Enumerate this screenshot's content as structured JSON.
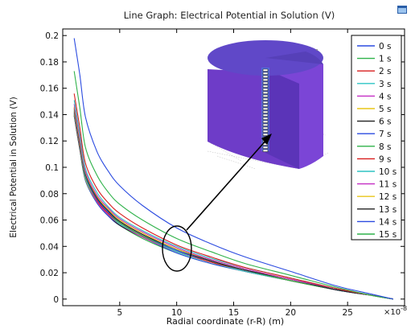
{
  "chart_data": {
    "type": "line",
    "title": "Line Graph: Electrical Potential in Solution (V)",
    "xlabel": "Radial coordinate (r-R) (m)",
    "ylabel": "Electrical Potential in Solution (V)",
    "x_exponent_label": "×10",
    "x_exponent_value": "-8",
    "xlim": [
      0,
      30
    ],
    "ylim": [
      -0.005,
      0.205
    ],
    "x_ticks": [
      "5",
      "10",
      "15",
      "20",
      "25"
    ],
    "y_ticks": [
      "0",
      "0.02",
      "0.04",
      "0.06",
      "0.08",
      "0.1",
      "0.12",
      "0.14",
      "0.16",
      "0.18",
      "0.2"
    ],
    "grid": false,
    "legend_position": "right",
    "x": [
      1,
      1.5,
      2,
      3,
      4,
      5,
      7,
      10,
      13,
      16,
      20,
      24,
      27,
      29
    ],
    "series": [
      {
        "name": "0 s",
        "color": "#2b4be0",
        "values": [
          0.198,
          0.17,
          0.138,
          0.112,
          0.097,
          0.086,
          0.071,
          0.054,
          0.042,
          0.032,
          0.021,
          0.01,
          0.004,
          0.0
        ]
      },
      {
        "name": "1 s",
        "color": "#2fb24a",
        "values": [
          0.173,
          0.145,
          0.115,
          0.094,
          0.081,
          0.072,
          0.06,
          0.046,
          0.036,
          0.027,
          0.018,
          0.009,
          0.003,
          0.0
        ]
      },
      {
        "name": "2 s",
        "color": "#d81e1e",
        "values": [
          0.156,
          0.13,
          0.103,
          0.084,
          0.073,
          0.065,
          0.054,
          0.041,
          0.032,
          0.024,
          0.016,
          0.008,
          0.003,
          0.0
        ]
      },
      {
        "name": "3 s",
        "color": "#2ec4c4",
        "values": [
          0.151,
          0.125,
          0.099,
          0.081,
          0.07,
          0.062,
          0.052,
          0.04,
          0.031,
          0.024,
          0.016,
          0.008,
          0.003,
          0.0
        ]
      },
      {
        "name": "4 s",
        "color": "#c42ec4",
        "values": [
          0.148,
          0.122,
          0.097,
          0.079,
          0.069,
          0.061,
          0.051,
          0.039,
          0.03,
          0.023,
          0.015,
          0.008,
          0.003,
          0.0
        ]
      },
      {
        "name": "5 s",
        "color": "#e8c619",
        "values": [
          0.146,
          0.12,
          0.096,
          0.078,
          0.068,
          0.06,
          0.05,
          0.038,
          0.03,
          0.023,
          0.015,
          0.008,
          0.003,
          0.0
        ]
      },
      {
        "name": "6 s",
        "color": "#222222",
        "values": [
          0.145,
          0.119,
          0.095,
          0.077,
          0.067,
          0.059,
          0.049,
          0.038,
          0.029,
          0.022,
          0.015,
          0.007,
          0.003,
          0.0
        ]
      },
      {
        "name": "7 s",
        "color": "#2b4be0",
        "values": [
          0.144,
          0.118,
          0.094,
          0.076,
          0.066,
          0.059,
          0.049,
          0.037,
          0.029,
          0.022,
          0.015,
          0.007,
          0.003,
          0.0
        ]
      },
      {
        "name": "8 s",
        "color": "#2fb24a",
        "values": [
          0.143,
          0.117,
          0.093,
          0.076,
          0.066,
          0.058,
          0.048,
          0.037,
          0.029,
          0.022,
          0.014,
          0.007,
          0.003,
          0.0
        ]
      },
      {
        "name": "9 s",
        "color": "#d81e1e",
        "values": [
          0.142,
          0.116,
          0.093,
          0.075,
          0.065,
          0.058,
          0.048,
          0.037,
          0.028,
          0.022,
          0.014,
          0.007,
          0.003,
          0.0
        ]
      },
      {
        "name": "10 s",
        "color": "#2ec4c4",
        "values": [
          0.141,
          0.116,
          0.092,
          0.075,
          0.065,
          0.057,
          0.048,
          0.036,
          0.028,
          0.021,
          0.014,
          0.007,
          0.003,
          0.0
        ]
      },
      {
        "name": "11 s",
        "color": "#c42ec4",
        "values": [
          0.141,
          0.115,
          0.092,
          0.074,
          0.064,
          0.057,
          0.047,
          0.036,
          0.028,
          0.021,
          0.014,
          0.007,
          0.003,
          0.0
        ]
      },
      {
        "name": "12 s",
        "color": "#e8c619",
        "values": [
          0.14,
          0.115,
          0.091,
          0.074,
          0.064,
          0.057,
          0.047,
          0.036,
          0.028,
          0.021,
          0.014,
          0.007,
          0.003,
          0.0
        ]
      },
      {
        "name": "13 s",
        "color": "#222222",
        "values": [
          0.14,
          0.114,
          0.091,
          0.074,
          0.064,
          0.056,
          0.047,
          0.036,
          0.028,
          0.021,
          0.014,
          0.007,
          0.003,
          0.0
        ]
      },
      {
        "name": "14 s",
        "color": "#2b4be0",
        "values": [
          0.139,
          0.114,
          0.09,
          0.073,
          0.063,
          0.056,
          0.047,
          0.035,
          0.027,
          0.021,
          0.014,
          0.007,
          0.003,
          0.0
        ]
      },
      {
        "name": "15 s",
        "color": "#2fb24a",
        "values": [
          0.139,
          0.113,
          0.09,
          0.073,
          0.063,
          0.056,
          0.046,
          0.035,
          0.027,
          0.021,
          0.014,
          0.007,
          0.003,
          0.0
        ]
      }
    ]
  },
  "colors": {
    "axis": "#000000",
    "cylinder_top": "#6a4fd0",
    "cylinder_side": "#7e3fd8",
    "cylinder_side_dark": "#5a2aa8",
    "probe": "#4aa3f0",
    "annotation": "#000000"
  },
  "icons": {
    "window": "window-icon"
  }
}
